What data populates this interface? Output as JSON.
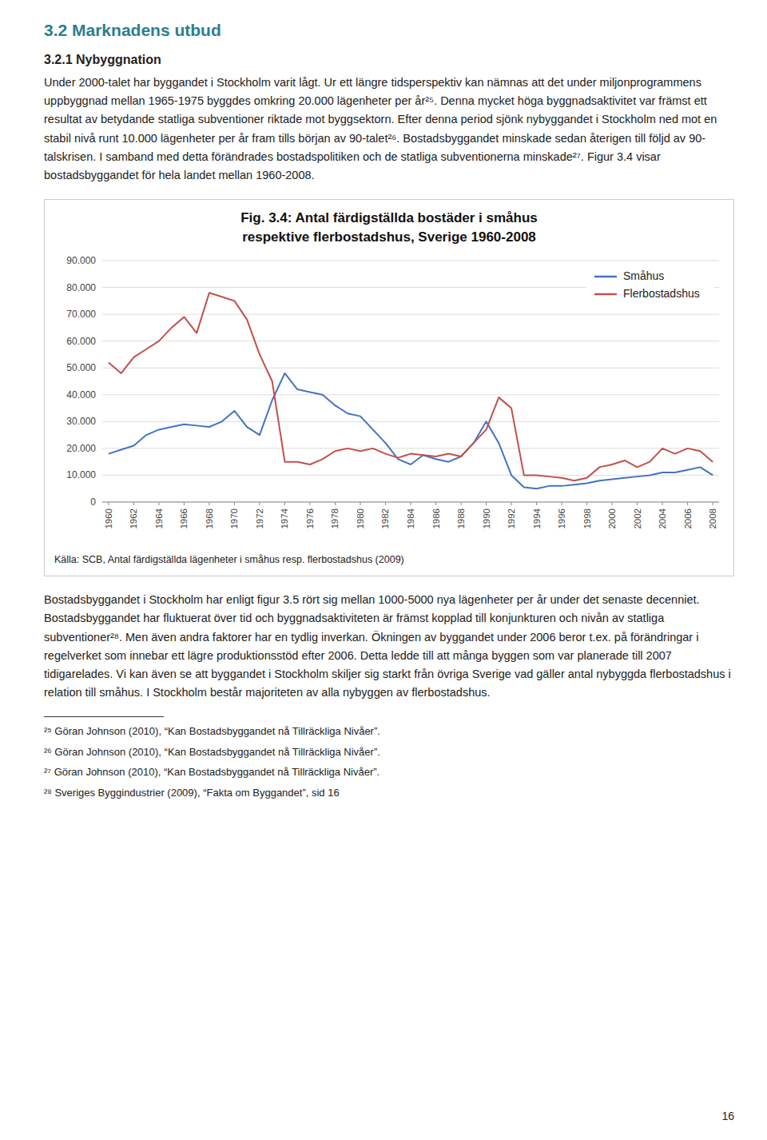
{
  "heading": "3.2 Marknadens utbud",
  "subheading": "3.2.1 Nybyggnation",
  "body_top": "Under 2000-talet har byggandet i Stockholm varit lågt. Ur ett längre tidsperspektiv kan nämnas att det under miljonprogrammens uppbyggnad mellan 1965-1975 byggdes omkring 20.000 lägenheter per år²⁵. Denna mycket höga byggnadsaktivitet var främst ett resultat av betydande statliga subventioner riktade mot byggsektorn. Efter denna period sjönk nybyggandet i Stockholm ned mot en stabil nivå runt 10.000 lägenheter per år fram tills början av 90-talet²⁶. Bostadsbyggandet minskade sedan återigen till följd av 90-talskrisen. I samband med detta förändrades bostadspolitiken och de statliga subventionerna minskade²⁷. Figur 3.4 visar bostadsbyggandet för hela landet mellan 1960-2008.",
  "body_bottom": "Bostadsbyggandet i Stockholm har enligt figur 3.5 rört sig mellan 1000-5000 nya lägenheter per år under det senaste decenniet. Bostadsbyggandet har fluktuerat över tid och byggnadsaktiviteten är främst kopplad till konjunkturen och nivån av statliga subventioner²⁸. Men även andra faktorer har en tydlig inverkan. Ökningen av byggandet under 2006 beror t.ex. på förändringar i regelverket som innebar ett lägre produktionsstöd efter 2006. Detta ledde till att många byggen som var planerade till 2007 tidigarelades. Vi kan även se att byggandet i Stockholm skiljer sig starkt från övriga Sverige vad gäller antal nybyggda flerbostadshus i relation till småhus. I Stockholm består majoriteten av alla nybyggen av flerbostadshus.",
  "footnotes": [
    "²⁵ Göran Johnson (2010), “Kan Bostadsbyggandet nå Tillräckliga Nivåer”.",
    "²⁶ Göran Johnson (2010), “Kan Bostadsbyggandet nå Tillräckliga Nivåer”.",
    "²⁷ Göran Johnson (2010), “Kan Bostadsbyggandet nå Tillräckliga Nivåer”.",
    "²⁸ Sveriges Byggindustrier (2009), “Fakta om Byggandet”, sid 16"
  ],
  "page_number": "16",
  "chart_data": {
    "type": "line",
    "title": [
      "Fig. 3.4: Antal färdigställda bostäder i småhus",
      "respektive flerbostadshus, Sverige 1960-2008"
    ],
    "source": "Källa: SCB, Antal färdigställda lägenheter i småhus resp. flerbostadshus (2009)",
    "x": [
      1960,
      1961,
      1962,
      1963,
      1964,
      1965,
      1966,
      1967,
      1968,
      1969,
      1970,
      1971,
      1972,
      1973,
      1974,
      1975,
      1976,
      1977,
      1978,
      1979,
      1980,
      1981,
      1982,
      1983,
      1984,
      1985,
      1986,
      1987,
      1988,
      1989,
      1990,
      1991,
      1992,
      1993,
      1994,
      1995,
      1996,
      1997,
      1998,
      1999,
      2000,
      2001,
      2002,
      2003,
      2004,
      2005,
      2006,
      2007,
      2008
    ],
    "series": [
      {
        "name": "Småhus",
        "color": "#4472C4",
        "values": [
          18000,
          19500,
          21000,
          25000,
          27000,
          28000,
          29000,
          28500,
          28000,
          30000,
          34000,
          28000,
          25000,
          38000,
          48000,
          42000,
          41000,
          40000,
          36000,
          33000,
          32000,
          27000,
          22000,
          16000,
          14000,
          17500,
          16000,
          15000,
          17000,
          22000,
          30000,
          22000,
          10000,
          5500,
          5000,
          6000,
          6000,
          6500,
          7000,
          8000,
          8500,
          9000,
          9500,
          10000,
          11000,
          11000,
          12000,
          13000,
          10000
        ]
      },
      {
        "name": "Flerbostadshus",
        "color": "#C0504D",
        "values": [
          52000,
          48000,
          54000,
          57000,
          60000,
          65000,
          69000,
          63000,
          78000,
          76500,
          75000,
          68000,
          55000,
          45000,
          15000,
          15000,
          14000,
          16000,
          19000,
          20000,
          19000,
          20000,
          18000,
          16500,
          18000,
          17500,
          17000,
          18000,
          17000,
          22000,
          27000,
          39000,
          35000,
          10000,
          10000,
          9500,
          9000,
          8000,
          9000,
          13000,
          14000,
          15500,
          13000,
          15000,
          20000,
          18000,
          20000,
          19000,
          15000
        ]
      }
    ],
    "xlim": [
      1959.5,
      2008.5
    ],
    "xticks": [
      1960,
      1962,
      1964,
      1966,
      1968,
      1970,
      1972,
      1974,
      1976,
      1978,
      1980,
      1982,
      1984,
      1986,
      1988,
      1990,
      1992,
      1994,
      1996,
      1998,
      2000,
      2002,
      2004,
      2006,
      2008
    ],
    "ylim": [
      0,
      90000
    ],
    "yticks": [
      0,
      {
        "value": 10000,
        "label": "10.000"
      },
      {
        "value": 20000,
        "label": "20.000"
      },
      {
        "value": 30000,
        "label": "30.000"
      },
      {
        "value": 40000,
        "label": "40.000"
      },
      {
        "value": 50000,
        "label": "50.000"
      },
      {
        "value": 60000,
        "label": "60.000"
      },
      {
        "value": 70000,
        "label": "70.000"
      },
      {
        "value": 80000,
        "label": "80.000"
      },
      {
        "value": 90000,
        "label": "90.000"
      }
    ],
    "grid": true,
    "legend": "upper right"
  }
}
